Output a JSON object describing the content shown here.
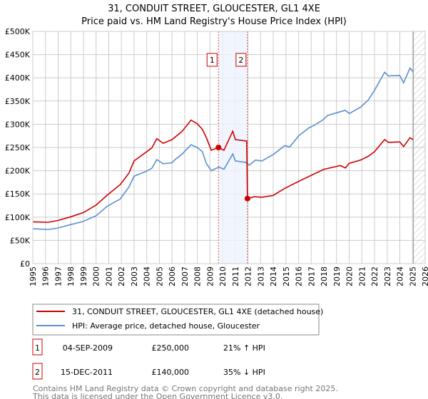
{
  "chart_data": {
    "type": "line",
    "title": "31, CONDUIT STREET, GLOUCESTER, GL1 4XE",
    "subtitle": "Price paid vs. HM Land Registry's House Price Index (HPI)",
    "xlabel": "",
    "ylabel": "",
    "xlim": [
      1995,
      2026
    ],
    "ylim": [
      0,
      500000
    ],
    "grid": true,
    "y_ticks": [
      0,
      50000,
      100000,
      150000,
      200000,
      250000,
      300000,
      350000,
      400000,
      450000,
      500000
    ],
    "y_tick_labels": [
      "£0",
      "£50K",
      "£100K",
      "£150K",
      "£200K",
      "£250K",
      "£300K",
      "£350K",
      "£400K",
      "£450K",
      "£500K"
    ],
    "x_ticks": [
      1995,
      1996,
      1997,
      1998,
      1999,
      2000,
      2001,
      2002,
      2003,
      2004,
      2005,
      2006,
      2007,
      2008,
      2009,
      2010,
      2011,
      2012,
      2013,
      2014,
      2015,
      2016,
      2017,
      2018,
      2019,
      2020,
      2021,
      2022,
      2023,
      2024,
      2025,
      2026
    ],
    "x_tick_labels": [
      "1995",
      "1996",
      "1997",
      "1998",
      "1999",
      "2000",
      "2001",
      "2002",
      "2003",
      "2004",
      "2005",
      "2006",
      "2007",
      "2008",
      "2009",
      "2010",
      "2011",
      "2012",
      "2013",
      "2014",
      "2015",
      "2016",
      "2017",
      "2018",
      "2019",
      "2020",
      "2021",
      "2022",
      "2023",
      "2024",
      "2025",
      "2026"
    ],
    "shaded_range": [
      2009.67,
      2011.96
    ],
    "forecast_hatch_from": 2025.07,
    "legend_placement": "below",
    "series": [
      {
        "name": "31, CONDUIT STREET, GLOUCESTER, GL1 4XE (detached house)",
        "color": "#cc0000",
        "x": [
          1995,
          1996.2,
          1997,
          1998,
          1999,
          2000,
          2000.9,
          2001.9,
          2002.6,
          2003,
          2003.9,
          2004.4,
          2004.8,
          2005.3,
          2006,
          2006.8,
          2007.5,
          2008,
          2008.4,
          2008.7,
          2009.1,
          2009.67,
          2010.1,
          2010.8,
          2011,
          2011.9,
          2011.96,
          2012.5,
          2013.1,
          2014,
          2014.9,
          2016,
          2017,
          2018,
          2019.3,
          2019.7,
          2020,
          2020.9,
          2021.5,
          2022,
          2022.8,
          2023.1,
          2024,
          2024.3,
          2024.8,
          2025.05
        ],
        "y": [
          90000,
          89000,
          93000,
          100700,
          110000,
          126000,
          148000,
          170000,
          195000,
          221000,
          239000,
          249000,
          269000,
          259000,
          267000,
          285000,
          309000,
          301000,
          289000,
          272000,
          244000,
          250000,
          244000,
          285000,
          267000,
          264000,
          140000,
          144000,
          143000,
          147000,
          162000,
          177000,
          190000,
          203000,
          211000,
          206000,
          216000,
          223000,
          231000,
          241000,
          267000,
          261000,
          262000,
          252000,
          271000,
          267000
        ]
      },
      {
        "name": "HPI: Average price, detached house, Gloucester",
        "color": "#5b8fd0",
        "x": [
          1995,
          1996.2,
          1996.9,
          1998,
          1998.9,
          2000,
          2000.9,
          2001.9,
          2002.6,
          2003,
          2003.9,
          2004.4,
          2004.8,
          2005.3,
          2006,
          2006.2,
          2006.8,
          2007.5,
          2008,
          2008.4,
          2008.7,
          2009.1,
          2009.7,
          2010.1,
          2010.8,
          2011,
          2011.85,
          2012.1,
          2012.6,
          2013.1,
          2014,
          2014.9,
          2015.3,
          2016,
          2016.8,
          2017.25,
          2017.9,
          2018.3,
          2019.3,
          2019.7,
          2020,
          2020.9,
          2021.5,
          2022,
          2022.8,
          2023.1,
          2024,
          2024.3,
          2024.8,
          2025.05
        ],
        "y": [
          75000,
          73600,
          76000,
          84000,
          90000,
          103000,
          124000,
          139000,
          165000,
          188000,
          198000,
          205000,
          224000,
          215000,
          217000,
          223000,
          236000,
          256000,
          250000,
          241000,
          216000,
          200000,
          208000,
          203000,
          236000,
          221000,
          218000,
          212000,
          223000,
          221000,
          235000,
          254000,
          251000,
          275000,
          292000,
          298000,
          309000,
          319000,
          327000,
          330000,
          323000,
          337000,
          352000,
          373000,
          412000,
          404000,
          405000,
          389000,
          421000,
          413000
        ]
      }
    ],
    "markers": [
      {
        "label": "1",
        "x": 2009.67,
        "y": 250000
      },
      {
        "label": "2",
        "x": 2011.96,
        "y": 140000
      }
    ]
  },
  "transactions": [
    {
      "num": "1",
      "date": "04-SEP-2009",
      "price": "£250,000",
      "hpi": "21% ↑ HPI"
    },
    {
      "num": "2",
      "date": "15-DEC-2011",
      "price": "£140,000",
      "hpi": "35% ↓ HPI"
    }
  ],
  "footer": {
    "line1": "Contains HM Land Registry data © Crown copyright and database right 2025.",
    "line2": "This data is licensed under the Open Government Licence v3.0."
  }
}
